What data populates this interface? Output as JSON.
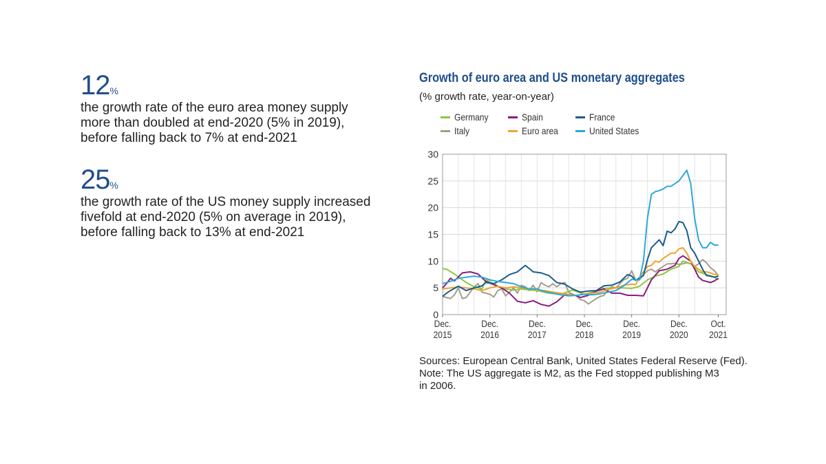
{
  "stats": [
    {
      "value": "12",
      "unit": "%",
      "text": "the growth rate of the euro area money supply more than doubled at end-2020 (5% in 2019), before falling back to 7% at end-2021"
    },
    {
      "value": "25",
      "unit": "%",
      "text": "the growth rate of the US money supply increased fivefold at end-2020 (5% on average in 2019), before falling back to 13% at end-2021"
    }
  ],
  "colors": {
    "accent": "#1f4e8c"
  },
  "chart_data": {
    "type": "line",
    "title": "Growth of euro area and US monetary aggregates",
    "subtitle": "(% growth rate, year-on-year)",
    "ylim": [
      0,
      30
    ],
    "yticks": [
      0,
      5,
      10,
      15,
      20,
      25,
      30
    ],
    "xticks": [
      {
        "label": [
          "Dec.",
          "2015"
        ],
        "month": 0
      },
      {
        "label": [
          "Dec.",
          "2016"
        ],
        "month": 12
      },
      {
        "label": [
          "Dec.",
          "2017"
        ],
        "month": 24
      },
      {
        "label": [
          "Dec.",
          "2018"
        ],
        "month": 36
      },
      {
        "label": [
          "Dec.",
          "2019"
        ],
        "month": 48
      },
      {
        "label": [
          "Dec.",
          "2020"
        ],
        "month": 60
      },
      {
        "label": [
          "Oct.",
          "2021"
        ],
        "month": 70
      }
    ],
    "grid": true,
    "legend_position": "top",
    "series": [
      {
        "name": "Germany",
        "color": "#8dc63f",
        "anchors": [
          [
            0,
            8.6
          ],
          [
            1,
            8.5
          ],
          [
            3,
            7.6
          ],
          [
            6,
            6.0
          ],
          [
            8,
            5.2
          ],
          [
            10,
            4.8
          ],
          [
            11,
            6.5
          ],
          [
            13,
            5.8
          ],
          [
            15,
            4.9
          ],
          [
            18,
            4.6
          ],
          [
            20,
            4.8
          ],
          [
            22,
            4.6
          ],
          [
            24,
            4.5
          ],
          [
            27,
            4.0
          ],
          [
            30,
            3.8
          ],
          [
            33,
            4.6
          ],
          [
            36,
            3.8
          ],
          [
            38,
            4.2
          ],
          [
            41,
            4.9
          ],
          [
            43,
            5.0
          ],
          [
            46,
            5.0
          ],
          [
            48,
            4.9
          ],
          [
            50,
            5.3
          ],
          [
            52,
            6.5
          ],
          [
            54,
            7.2
          ],
          [
            56,
            7.6
          ],
          [
            58,
            8.5
          ],
          [
            60,
            9.0
          ],
          [
            61,
            10.0
          ],
          [
            63,
            9.5
          ],
          [
            65,
            8.0
          ],
          [
            67,
            7.5
          ],
          [
            69,
            7.0
          ],
          [
            70,
            6.5
          ]
        ]
      },
      {
        "name": "Spain",
        "color": "#8b1c7a",
        "anchors": [
          [
            0,
            5.0
          ],
          [
            1,
            5.8
          ],
          [
            2,
            6.8
          ],
          [
            3,
            6.3
          ],
          [
            5,
            7.8
          ],
          [
            7,
            8.0
          ],
          [
            9,
            7.6
          ],
          [
            11,
            6.2
          ],
          [
            13,
            5.6
          ],
          [
            15,
            5.0
          ],
          [
            17,
            4.0
          ],
          [
            19,
            2.5
          ],
          [
            21,
            2.2
          ],
          [
            23,
            2.6
          ],
          [
            25,
            1.9
          ],
          [
            27,
            1.6
          ],
          [
            29,
            2.4
          ],
          [
            31,
            3.7
          ],
          [
            33,
            3.8
          ],
          [
            35,
            3.2
          ],
          [
            37,
            3.6
          ],
          [
            39,
            4.4
          ],
          [
            41,
            4.8
          ],
          [
            43,
            4.0
          ],
          [
            45,
            4.0
          ],
          [
            47,
            3.6
          ],
          [
            49,
            3.6
          ],
          [
            51,
            3.5
          ],
          [
            53,
            6.5
          ],
          [
            55,
            8.2
          ],
          [
            57,
            8.5
          ],
          [
            59,
            9.2
          ],
          [
            60,
            10.5
          ],
          [
            61,
            11.0
          ],
          [
            63,
            10.0
          ],
          [
            65,
            7.0
          ],
          [
            66,
            6.4
          ],
          [
            67,
            6.2
          ],
          [
            68,
            6.0
          ],
          [
            69,
            6.3
          ],
          [
            70,
            6.8
          ]
        ]
      },
      {
        "name": "France",
        "color": "#1a5c8a",
        "anchors": [
          [
            0,
            3.4
          ],
          [
            1,
            4.0
          ],
          [
            2,
            4.5
          ],
          [
            4,
            5.3
          ],
          [
            6,
            4.5
          ],
          [
            8,
            5.0
          ],
          [
            10,
            5.4
          ],
          [
            11,
            6.0
          ],
          [
            13,
            5.8
          ],
          [
            15,
            6.5
          ],
          [
            17,
            7.5
          ],
          [
            19,
            8.0
          ],
          [
            21,
            9.2
          ],
          [
            23,
            8.0
          ],
          [
            25,
            7.8
          ],
          [
            27,
            7.3
          ],
          [
            29,
            6.0
          ],
          [
            31,
            5.7
          ],
          [
            33,
            4.8
          ],
          [
            35,
            4.2
          ],
          [
            37,
            4.4
          ],
          [
            39,
            4.5
          ],
          [
            41,
            5.4
          ],
          [
            43,
            5.5
          ],
          [
            45,
            6.1
          ],
          [
            47,
            7.5
          ],
          [
            48,
            7.2
          ],
          [
            49,
            6.4
          ],
          [
            51,
            7.3
          ],
          [
            52,
            10.3
          ],
          [
            53,
            12.5
          ],
          [
            55,
            14.0
          ],
          [
            56,
            12.9
          ],
          [
            57,
            15.6
          ],
          [
            58,
            15.3
          ],
          [
            59,
            16.0
          ],
          [
            60,
            17.4
          ],
          [
            61,
            17.2
          ],
          [
            62,
            15.7
          ],
          [
            63,
            12.5
          ],
          [
            64,
            11.5
          ],
          [
            66,
            8.5
          ],
          [
            67,
            7.3
          ],
          [
            68,
            7.2
          ],
          [
            69,
            7.0
          ],
          [
            70,
            7.2
          ]
        ]
      },
      {
        "name": "Italy",
        "color": "#a39d8c",
        "anchors": [
          [
            0,
            3.4
          ],
          [
            1,
            3.2
          ],
          [
            2,
            3.0
          ],
          [
            3,
            3.7
          ],
          [
            4,
            5.0
          ],
          [
            5,
            3.0
          ],
          [
            6,
            3.2
          ],
          [
            7,
            4.2
          ],
          [
            8,
            5.2
          ],
          [
            9,
            5.8
          ],
          [
            10,
            4.2
          ],
          [
            11,
            4.0
          ],
          [
            12,
            3.8
          ],
          [
            13,
            3.3
          ],
          [
            14,
            4.5
          ],
          [
            15,
            4.8
          ],
          [
            16,
            3.5
          ],
          [
            17,
            4.2
          ],
          [
            18,
            5.0
          ],
          [
            19,
            4.0
          ],
          [
            20,
            5.5
          ],
          [
            21,
            5.2
          ],
          [
            22,
            4.5
          ],
          [
            23,
            5.5
          ],
          [
            24,
            4.3
          ],
          [
            25,
            6.0
          ],
          [
            26,
            5.5
          ],
          [
            27,
            5.2
          ],
          [
            28,
            5.8
          ],
          [
            29,
            5.2
          ],
          [
            30,
            5.8
          ],
          [
            31,
            6.0
          ],
          [
            32,
            4.2
          ],
          [
            33,
            3.8
          ],
          [
            34,
            3.5
          ],
          [
            35,
            2.8
          ],
          [
            36,
            2.6
          ],
          [
            37,
            2.0
          ],
          [
            38,
            2.5
          ],
          [
            39,
            3.0
          ],
          [
            40,
            3.4
          ],
          [
            41,
            3.6
          ],
          [
            42,
            4.8
          ],
          [
            43,
            5.2
          ],
          [
            44,
            5.0
          ],
          [
            45,
            5.8
          ],
          [
            46,
            6.5
          ],
          [
            47,
            6.8
          ],
          [
            48,
            8.2
          ],
          [
            49,
            6.5
          ],
          [
            50,
            6.5
          ],
          [
            51,
            7.5
          ],
          [
            52,
            8.2
          ],
          [
            53,
            8.5
          ],
          [
            54,
            8.0
          ],
          [
            55,
            8.5
          ],
          [
            56,
            9.0
          ],
          [
            57,
            9.5
          ],
          [
            58,
            9.5
          ],
          [
            59,
            9.6
          ],
          [
            60,
            9.4
          ],
          [
            61,
            9.5
          ],
          [
            62,
            9.7
          ],
          [
            63,
            9.5
          ],
          [
            64,
            9.0
          ],
          [
            65,
            9.5
          ],
          [
            66,
            10.3
          ],
          [
            67,
            9.7
          ],
          [
            68,
            8.8
          ],
          [
            69,
            8.2
          ],
          [
            70,
            7.3
          ]
        ]
      },
      {
        "name": "Euro area",
        "color": "#f0a330",
        "anchors": [
          [
            0,
            4.8
          ],
          [
            2,
            5.0
          ],
          [
            4,
            5.2
          ],
          [
            6,
            5.0
          ],
          [
            8,
            4.8
          ],
          [
            10,
            4.5
          ],
          [
            12,
            5.0
          ],
          [
            14,
            5.3
          ],
          [
            16,
            5.0
          ],
          [
            18,
            5.2
          ],
          [
            20,
            5.0
          ],
          [
            22,
            4.8
          ],
          [
            24,
            4.6
          ],
          [
            26,
            4.5
          ],
          [
            28,
            4.2
          ],
          [
            30,
            4.0
          ],
          [
            32,
            3.8
          ],
          [
            34,
            3.6
          ],
          [
            36,
            3.8
          ],
          [
            38,
            4.0
          ],
          [
            40,
            4.2
          ],
          [
            42,
            4.7
          ],
          [
            44,
            5.0
          ],
          [
            46,
            5.5
          ],
          [
            48,
            5.7
          ],
          [
            49,
            5.6
          ],
          [
            50,
            7.0
          ],
          [
            51,
            8.0
          ],
          [
            52,
            9.0
          ],
          [
            53,
            9.2
          ],
          [
            54,
            10.0
          ],
          [
            55,
            9.8
          ],
          [
            56,
            10.5
          ],
          [
            57,
            11.0
          ],
          [
            58,
            11.5
          ],
          [
            59,
            11.5
          ],
          [
            60,
            12.3
          ],
          [
            61,
            12.5
          ],
          [
            62,
            11.5
          ],
          [
            63,
            10.0
          ],
          [
            64,
            9.0
          ],
          [
            65,
            8.5
          ],
          [
            66,
            8.0
          ],
          [
            67,
            8.0
          ],
          [
            68,
            7.8
          ],
          [
            69,
            7.5
          ],
          [
            70,
            7.5
          ]
        ]
      },
      {
        "name": "United States",
        "color": "#2aa8dc",
        "anchors": [
          [
            0,
            5.8
          ],
          [
            2,
            6.2
          ],
          [
            4,
            6.8
          ],
          [
            6,
            7.0
          ],
          [
            8,
            7.2
          ],
          [
            10,
            7.0
          ],
          [
            12,
            6.5
          ],
          [
            14,
            6.2
          ],
          [
            16,
            6.0
          ],
          [
            18,
            5.8
          ],
          [
            20,
            5.2
          ],
          [
            22,
            4.8
          ],
          [
            24,
            4.8
          ],
          [
            26,
            4.3
          ],
          [
            28,
            4.0
          ],
          [
            30,
            3.7
          ],
          [
            32,
            3.5
          ],
          [
            34,
            3.6
          ],
          [
            36,
            3.8
          ],
          [
            38,
            3.7
          ],
          [
            40,
            3.9
          ],
          [
            42,
            4.2
          ],
          [
            44,
            4.5
          ],
          [
            46,
            5.4
          ],
          [
            48,
            6.6
          ],
          [
            49,
            6.5
          ],
          [
            50,
            6.5
          ],
          [
            51,
            10.0
          ],
          [
            52,
            18.0
          ],
          [
            53,
            22.5
          ],
          [
            54,
            23.0
          ],
          [
            55,
            23.2
          ],
          [
            56,
            23.5
          ],
          [
            57,
            24.0
          ],
          [
            58,
            24.0
          ],
          [
            59,
            24.5
          ],
          [
            60,
            25.0
          ],
          [
            61,
            26.0
          ],
          [
            62,
            27.0
          ],
          [
            63,
            24.5
          ],
          [
            64,
            18.0
          ],
          [
            65,
            14.0
          ],
          [
            66,
            12.5
          ],
          [
            67,
            12.5
          ],
          [
            68,
            13.5
          ],
          [
            69,
            13.0
          ],
          [
            70,
            13.0
          ]
        ]
      }
    ]
  },
  "sources": [
    "Sources: European Central Bank, United States Federal Reserve (Fed).",
    "Note: The US aggregate is M2, as the Fed stopped publishing M3",
    "in 2006."
  ]
}
